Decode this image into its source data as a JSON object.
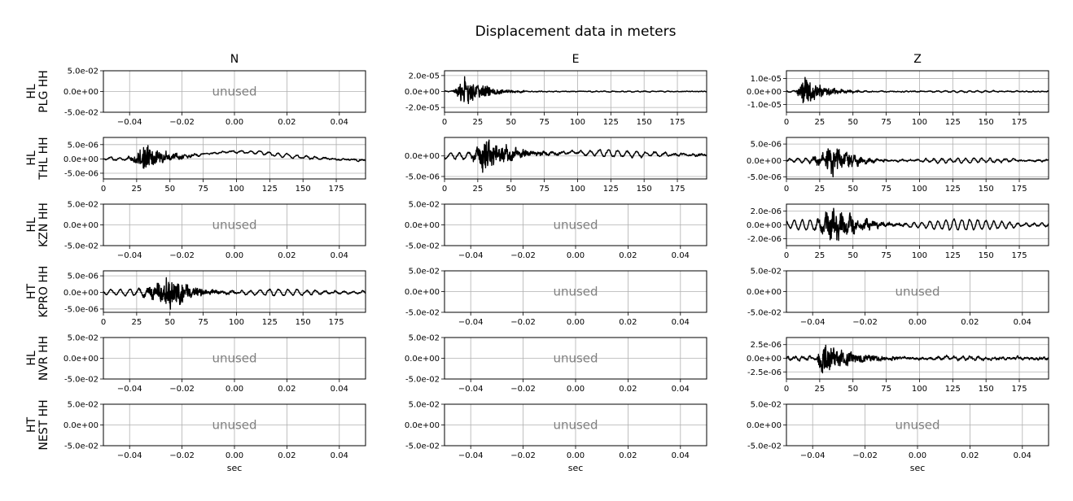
{
  "chart_data": {
    "type": "line",
    "title": "Displacement data in meters",
    "columns": [
      "N",
      "E",
      "Z"
    ],
    "rows": [
      {
        "label": [
          "HL",
          "PLG HH"
        ]
      },
      {
        "label": [
          "HL",
          "THL HH"
        ]
      },
      {
        "label": [
          "HL",
          "KZN HH"
        ]
      },
      {
        "label": [
          "HT",
          "KPRO HH"
        ]
      },
      {
        "label": [
          "HL",
          "NVR HH"
        ]
      },
      {
        "label": [
          "HT",
          "NEST HH"
        ]
      }
    ],
    "xlabel": "sec",
    "unused_text": "unused",
    "unused_axes": {
      "xlim": [
        -0.05,
        0.05
      ],
      "xticks": [
        -0.04,
        -0.02,
        0.0,
        0.02,
        0.04
      ],
      "xtick_labels": [
        "−0.04",
        "−0.02",
        "0.00",
        "0.02",
        "0.04"
      ],
      "ylim": [
        -0.05,
        0.05
      ],
      "yticks": [
        0.05,
        0.0,
        -0.05
      ],
      "ytick_labels": [
        "5.0e-02",
        "0.0e+00",
        "-5.0e-02"
      ]
    },
    "time_axes": {
      "xlim": [
        0,
        197
      ],
      "xticks": [
        0,
        25,
        50,
        75,
        100,
        125,
        150,
        175
      ],
      "xtick_labels": [
        "0",
        "25",
        "50",
        "75",
        "100",
        "125",
        "150",
        "175"
      ]
    },
    "grid": true,
    "panels": [
      {
        "row": 0,
        "col": 0,
        "unused": true
      },
      {
        "row": 0,
        "col": 1,
        "unused": false,
        "ylim": [
          -2.6e-05,
          2.6e-05
        ],
        "yticks": [
          2e-05,
          0.0,
          -2e-05
        ],
        "ytick_labels": [
          "2.0e-05",
          "0.0e+00",
          "-2.0e-05"
        ],
        "baseline": 0.0,
        "drift": [],
        "bursts": [
          {
            "start": 5,
            "peak": 13,
            "end": 60,
            "amp": 2.3e-05
          }
        ],
        "noise_amp": 4e-07,
        "wave_amp": 5e-07,
        "wave_period": 6
      },
      {
        "row": 0,
        "col": 2,
        "unused": false,
        "ylim": [
          -1.6e-05,
          1.6e-05
        ],
        "yticks": [
          1e-05,
          0.0,
          -1e-05
        ],
        "ytick_labels": [
          "1.0e-05",
          "0.0e+00",
          "-1.0e-05"
        ],
        "baseline": 0.0,
        "drift": [],
        "bursts": [
          {
            "start": 5,
            "peak": 13,
            "end": 55,
            "amp": 1.4e-05
          }
        ],
        "noise_amp": 3e-07,
        "wave_amp": 7e-07,
        "wave_period": 6
      },
      {
        "row": 1,
        "col": 0,
        "unused": false,
        "ylim": [
          -7e-06,
          7.5e-06
        ],
        "yticks": [
          5e-06,
          0.0,
          -5e-06
        ],
        "ytick_labels": [
          "5.0e-06",
          "0.0e+00",
          "-5.0e-06"
        ],
        "baseline": 0.0,
        "drift": [
          [
            0,
            0.0
          ],
          [
            18,
            0.0
          ],
          [
            60,
            8e-07
          ],
          [
            95,
            2.6e-06
          ],
          [
            115,
            2.2e-06
          ],
          [
            140,
            1e-06
          ],
          [
            170,
            0.0
          ],
          [
            197,
            -5e-07
          ]
        ],
        "bursts": [
          {
            "start": 15,
            "peak": 30,
            "end": 75,
            "amp": 6e-06
          }
        ],
        "noise_amp": 2e-07,
        "wave_amp": 6e-07,
        "wave_period": 7
      },
      {
        "row": 1,
        "col": 1,
        "unused": false,
        "ylim": [
          -5.6e-06,
          4.5e-06
        ],
        "yticks": [
          0.0,
          -5e-06
        ],
        "ytick_labels": [
          "0.0e+00",
          "-5.0e-06"
        ],
        "baseline": 0.0,
        "drift": [
          [
            0,
            0.0
          ],
          [
            15,
            0.0
          ],
          [
            40,
            4e-07
          ],
          [
            100,
            8e-07
          ],
          [
            197,
            2e-07
          ]
        ],
        "bursts": [
          {
            "start": 15,
            "peak": 30,
            "end": 90,
            "amp": 4.5e-06
          }
        ],
        "noise_amp": 2e-07,
        "wave_amp": 8e-07,
        "wave_period": 7
      },
      {
        "row": 1,
        "col": 2,
        "unused": false,
        "ylim": [
          -5.6e-06,
          7e-06
        ],
        "yticks": [
          5e-06,
          0.0,
          -5e-06
        ],
        "ytick_labels": [
          "5.0e-06",
          "0.0e+00",
          "-5.0e-06"
        ],
        "baseline": 0.0,
        "drift": [],
        "bursts": [
          {
            "start": 12,
            "peak": 35,
            "end": 75,
            "amp": 5.5e-06
          }
        ],
        "noise_amp": 2e-07,
        "wave_amp": 7e-07,
        "wave_period": 6
      },
      {
        "row": 2,
        "col": 0,
        "unused": true
      },
      {
        "row": 2,
        "col": 1,
        "unused": true
      },
      {
        "row": 2,
        "col": 2,
        "unused": false,
        "ylim": [
          -3e-06,
          3e-06
        ],
        "yticks": [
          2e-06,
          0.0,
          -2e-06
        ],
        "ytick_labels": [
          "2.0e-06",
          "0.0e+00",
          "-2.0e-06"
        ],
        "baseline": 0.0,
        "drift": [],
        "bursts": [
          {
            "start": 15,
            "peak": 35,
            "end": 90,
            "amp": 2.7e-06
          }
        ],
        "noise_amp": 1e-07,
        "wave_amp": 8e-07,
        "wave_period": 6
      },
      {
        "row": 3,
        "col": 0,
        "unused": false,
        "ylim": [
          -6e-06,
          6.5e-06
        ],
        "yticks": [
          5e-06,
          0.0,
          -5e-06
        ],
        "ytick_labels": [
          "5.0e-06",
          "0.0e+00",
          "-5.0e-06"
        ],
        "baseline": 0.0,
        "drift": [],
        "bursts": [
          {
            "start": 20,
            "peak": 50,
            "end": 100,
            "amp": 5.5e-06
          }
        ],
        "noise_amp": 2e-07,
        "wave_amp": 9e-07,
        "wave_period": 7
      },
      {
        "row": 3,
        "col": 1,
        "unused": true
      },
      {
        "row": 3,
        "col": 2,
        "unused": true
      },
      {
        "row": 4,
        "col": 0,
        "unused": true
      },
      {
        "row": 4,
        "col": 1,
        "unused": true
      },
      {
        "row": 4,
        "col": 2,
        "unused": false,
        "ylim": [
          -3.8e-06,
          3.8e-06
        ],
        "yticks": [
          2.5e-06,
          0.0,
          -2.5e-06
        ],
        "ytick_labels": [
          "2.5e-06",
          "0.0e+00",
          "-2.5e-06"
        ],
        "baseline": 0.0,
        "drift": [],
        "bursts": [
          {
            "start": 22,
            "peak": 25,
            "end": 85,
            "amp": 3.7e-06
          }
        ],
        "noise_amp": 2e-07,
        "wave_amp": 3e-07,
        "wave_period": 6
      },
      {
        "row": 5,
        "col": 0,
        "unused": true
      },
      {
        "row": 5,
        "col": 1,
        "unused": true
      },
      {
        "row": 5,
        "col": 2,
        "unused": true
      }
    ]
  }
}
